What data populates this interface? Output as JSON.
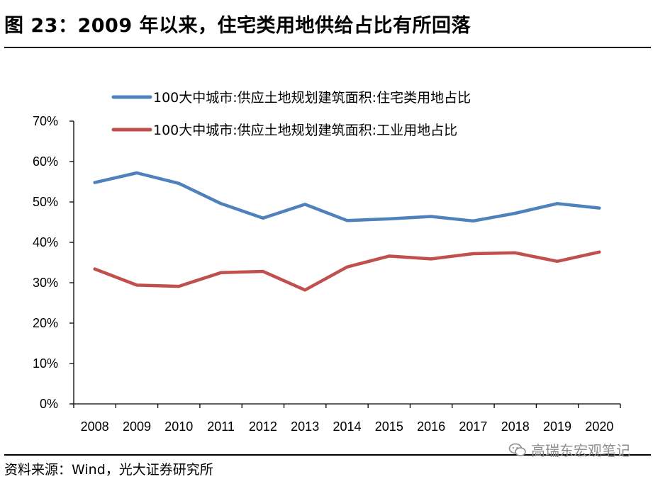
{
  "header": {
    "title": "图 23：2009 年以来，住宅类用地供给占比有所回落"
  },
  "footer": {
    "source": "资料来源：Wind，光大证券研究所",
    "watermark": "高瑞东宏观笔记"
  },
  "chart_data": {
    "type": "line",
    "title": "",
    "xlabel": "",
    "ylabel": "",
    "categories": [
      "2008",
      "2009",
      "2010",
      "2011",
      "2012",
      "2013",
      "2014",
      "2015",
      "2016",
      "2017",
      "2018",
      "2019",
      "2020"
    ],
    "ylim": [
      0,
      70
    ],
    "yticks": [
      "0%",
      "10%",
      "20%",
      "30%",
      "40%",
      "50%",
      "60%",
      "70%"
    ],
    "grid": false,
    "legend_position": "top",
    "series": [
      {
        "name": "100大中城市:供应土地规划建筑面积:住宅类用地占比",
        "color": "#4f81bd",
        "values": [
          54.8,
          57.2,
          54.6,
          49.6,
          46.0,
          49.4,
          45.4,
          45.8,
          46.4,
          45.3,
          47.2,
          49.6,
          48.5
        ]
      },
      {
        "name": "100大中城市:供应土地规划建筑面积:工业用地占比",
        "color": "#c0504d",
        "values": [
          33.4,
          29.4,
          29.1,
          32.5,
          32.8,
          28.2,
          33.9,
          36.6,
          35.9,
          37.2,
          37.4,
          35.3,
          37.6
        ]
      }
    ]
  }
}
